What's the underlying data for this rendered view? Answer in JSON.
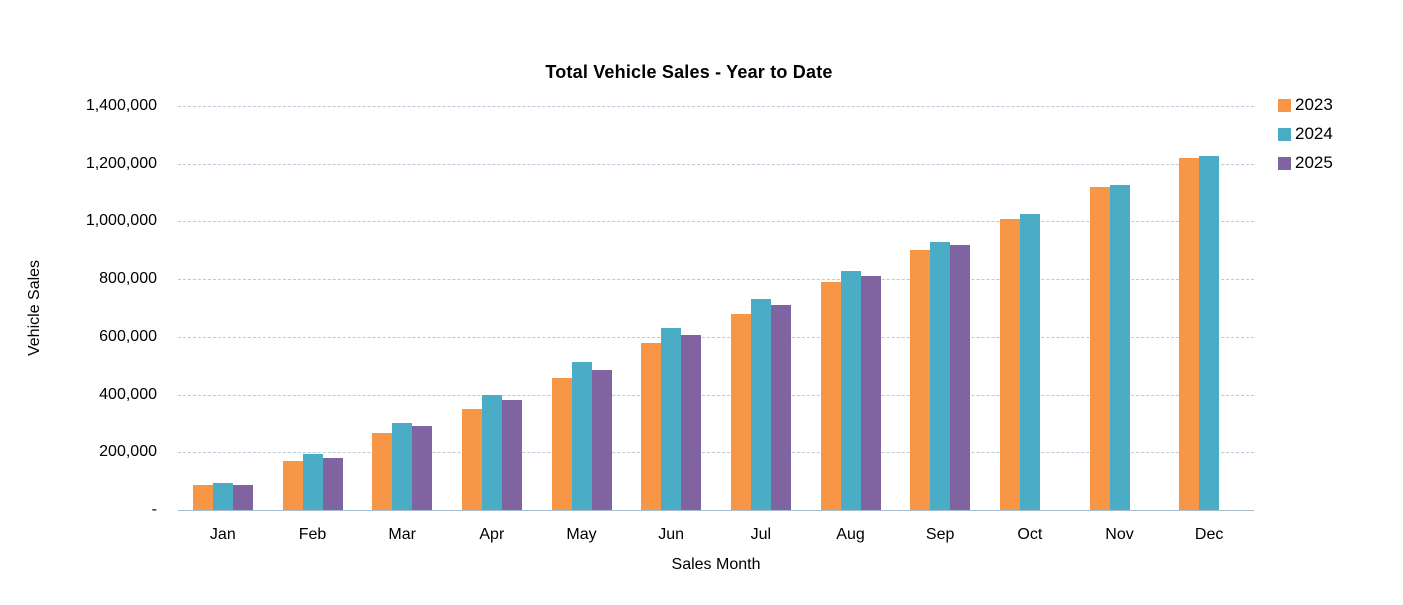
{
  "chart_data": {
    "type": "bar",
    "title": "Total Vehicle Sales - Year to Date",
    "xlabel": "Sales Month",
    "ylabel": "Vehicle Sales",
    "categories": [
      "Jan",
      "Feb",
      "Mar",
      "Apr",
      "May",
      "Jun",
      "Jul",
      "Aug",
      "Sep",
      "Oct",
      "Nov",
      "Dec"
    ],
    "series": [
      {
        "name": "2023",
        "color": "#F79646",
        "values": [
          85000,
          170000,
          268000,
          350000,
          456000,
          580000,
          678000,
          789000,
          901000,
          1007000,
          1119000,
          1220000
        ]
      },
      {
        "name": "2024",
        "color": "#4BACC6",
        "values": [
          92000,
          193000,
          303000,
          400000,
          512000,
          630000,
          732000,
          829000,
          928000,
          1026000,
          1128000,
          1226000
        ]
      },
      {
        "name": "2025",
        "color": "#8064A2",
        "values": [
          86000,
          181000,
          290000,
          380000,
          485000,
          607000,
          711000,
          812000,
          917000,
          null,
          null,
          null
        ]
      }
    ],
    "ylim": [
      0,
      1400000
    ],
    "ytick_step": 200000,
    "ytick_labels": [
      "-",
      "200,000",
      "400,000",
      "600,000",
      "800,000",
      "1,000,000",
      "1,200,000",
      "1,400,000"
    ],
    "grid": true,
    "gridline_color": "#b9cbdb",
    "legend_position": "top-right",
    "background": "#ffffff"
  }
}
